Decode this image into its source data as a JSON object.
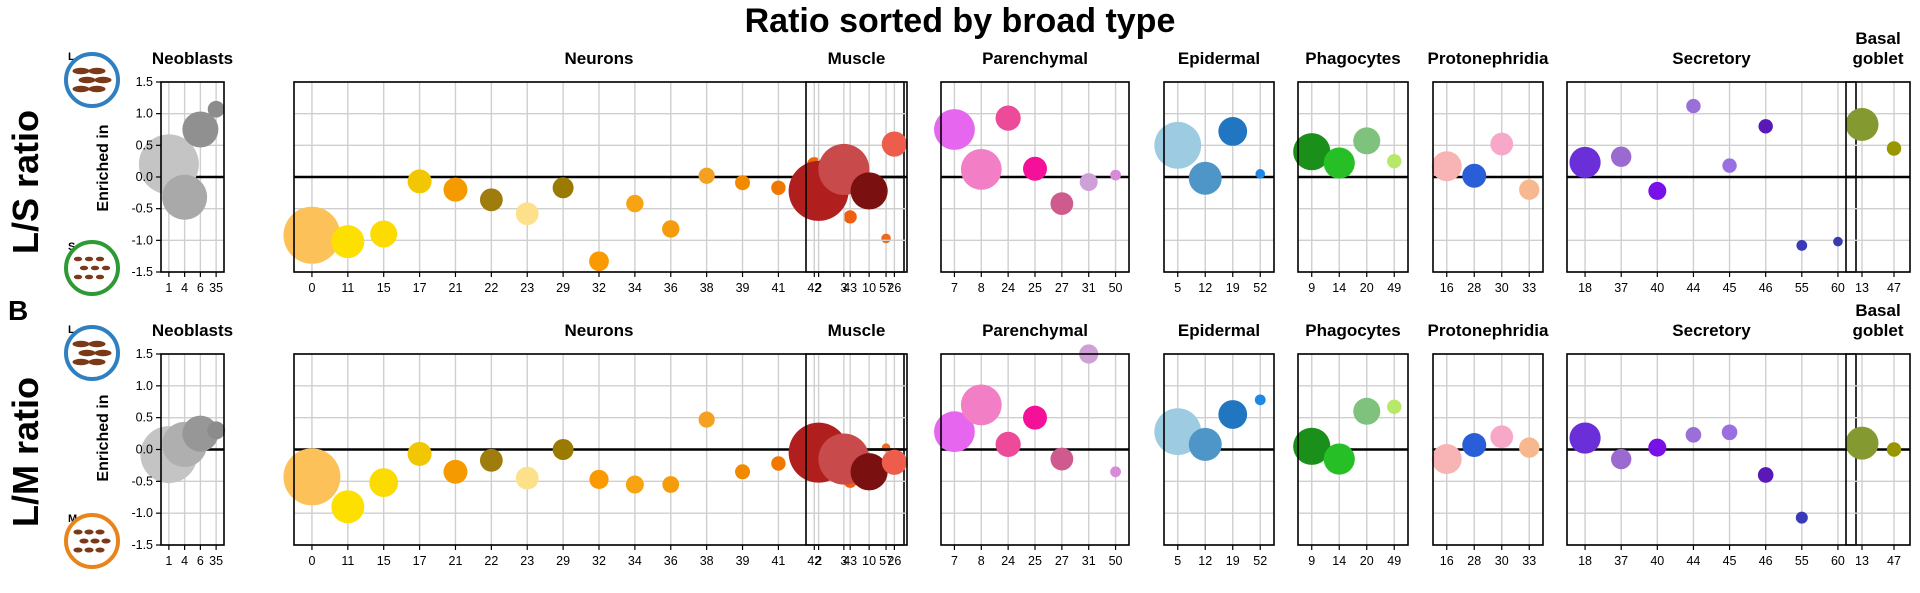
{
  "figure": {
    "title": "Ratio sorted by broad type",
    "panel_b_label": "B",
    "y_axis_title": "Enriched in",
    "rows": [
      {
        "key": "ls",
        "title": "L/S ratio",
        "top_letter": "L",
        "bottom_letter": "S",
        "top_icon": "large-worm-icon",
        "bottom_icon": "small-worm-icon"
      },
      {
        "key": "lm",
        "title": "L/M ratio",
        "top_letter": "L",
        "bottom_letter": "M",
        "top_icon": "large-worm-icon",
        "bottom_icon": "medium-worm-icon"
      }
    ],
    "icon_colors": {
      "L": "#2f7fc1",
      "S": "#2e9a33",
      "M": "#e8841c",
      "body": "#7a3a17",
      "fill": "#ffffff"
    }
  },
  "chart_data": [
    {
      "type": "scatter",
      "row": "L/S ratio",
      "ylim": [
        -1.5,
        1.5
      ],
      "yticks": [
        "-1.5",
        "-1.0",
        "-0.5",
        "0.0",
        "0.5",
        "1.0",
        "1.5"
      ],
      "grid": true,
      "panels": [
        {
          "title": "Neoblasts",
          "points": [
            {
              "x": "1",
              "y": 0.2,
              "size": 1.0,
              "color": "#c4c4c4"
            },
            {
              "x": "4",
              "y": -0.32,
              "size": 0.75,
              "color": "#a9a9a9"
            },
            {
              "x": "6",
              "y": 0.75,
              "size": 0.6,
              "color": "#909090"
            },
            {
              "x": "35",
              "y": 1.07,
              "size": 0.28,
              "color": "#8c8c8c"
            }
          ]
        },
        {
          "title": "Neurons",
          "points": [
            {
              "x": "0",
              "y": -0.92,
              "size": 0.95,
              "color": "#fdc15a"
            },
            {
              "x": "11",
              "y": -1.02,
              "size": 0.55,
              "color": "#fde000"
            },
            {
              "x": "15",
              "y": -0.9,
              "size": 0.45,
              "color": "#fcdb00"
            },
            {
              "x": "17",
              "y": -0.07,
              "size": 0.4,
              "color": "#f0c700"
            },
            {
              "x": "21",
              "y": -0.2,
              "size": 0.4,
              "color": "#f59a00"
            },
            {
              "x": "22",
              "y": -0.36,
              "size": 0.38,
              "color": "#9e7d0c"
            },
            {
              "x": "23",
              "y": -0.58,
              "size": 0.38,
              "color": "#fde08a"
            },
            {
              "x": "29",
              "y": -0.17,
              "size": 0.35,
              "color": "#9a7a00"
            },
            {
              "x": "32",
              "y": -1.33,
              "size": 0.33,
              "color": "#fa9a00"
            },
            {
              "x": "34",
              "y": -0.42,
              "size": 0.29,
              "color": "#f8a412"
            },
            {
              "x": "36",
              "y": -0.82,
              "size": 0.29,
              "color": "#f59c0a"
            },
            {
              "x": "38",
              "y": 0.02,
              "size": 0.27,
              "color": "#f4a020"
            },
            {
              "x": "39",
              "y": -0.09,
              "size": 0.25,
              "color": "#f28a00"
            },
            {
              "x": "41",
              "y": -0.17,
              "size": 0.24,
              "color": "#f07800"
            },
            {
              "x": "42",
              "y": 0.2,
              "size": 0.24,
              "color": "#ee6a00"
            },
            {
              "x": "43",
              "y": -0.63,
              "size": 0.22,
              "color": "#ee6010"
            },
            {
              "x": "57",
              "y": -0.97,
              "size": 0.16,
              "color": "#ee6a1f"
            }
          ]
        },
        {
          "title": "Muscle",
          "points": [
            {
              "x": "2",
              "y": -0.22,
              "size": 1.0,
              "color": "#b01e1e"
            },
            {
              "x": "3",
              "y": 0.12,
              "size": 0.85,
              "color": "#c94a4a"
            },
            {
              "x": "10",
              "y": -0.22,
              "size": 0.62,
              "color": "#7a1010"
            },
            {
              "x": "26",
              "y": 0.52,
              "size": 0.42,
              "color": "#ee5d4b"
            }
          ]
        },
        {
          "title": "Parenchymal",
          "points": [
            {
              "x": "7",
              "y": 0.75,
              "size": 0.68,
              "color": "#e666f0"
            },
            {
              "x": "8",
              "y": 0.12,
              "size": 0.68,
              "color": "#f27ec5"
            },
            {
              "x": "24",
              "y": 0.93,
              "size": 0.42,
              "color": "#ee4a9a"
            },
            {
              "x": "25",
              "y": 0.13,
              "size": 0.4,
              "color": "#f5109a"
            },
            {
              "x": "27",
              "y": -0.42,
              "size": 0.38,
              "color": "#cf5a8e"
            },
            {
              "x": "31",
              "y": -0.08,
              "size": 0.3,
              "color": "#cfa0d8"
            },
            {
              "x": "50",
              "y": 0.03,
              "size": 0.18,
              "color": "#d78ad8"
            }
          ]
        },
        {
          "title": "Epidermal",
          "points": [
            {
              "x": "5",
              "y": 0.5,
              "size": 0.78,
              "color": "#9dcbe2"
            },
            {
              "x": "12",
              "y": -0.02,
              "size": 0.55,
              "color": "#4f96c8"
            },
            {
              "x": "19",
              "y": 0.72,
              "size": 0.48,
              "color": "#2076c0"
            },
            {
              "x": "52",
              "y": 0.05,
              "size": 0.16,
              "color": "#1f88e5"
            }
          ]
        },
        {
          "title": "Phagocytes",
          "points": [
            {
              "x": "9",
              "y": 0.4,
              "size": 0.62,
              "color": "#1a8f1a"
            },
            {
              "x": "14",
              "y": 0.22,
              "size": 0.52,
              "color": "#26c026"
            },
            {
              "x": "20",
              "y": 0.57,
              "size": 0.45,
              "color": "#7ec27e"
            },
            {
              "x": "49",
              "y": 0.25,
              "size": 0.24,
              "color": "#b8e86a"
            }
          ]
        },
        {
          "title": "Protonephridia",
          "points": [
            {
              "x": "16",
              "y": 0.17,
              "size": 0.5,
              "color": "#f8b4b4"
            },
            {
              "x": "28",
              "y": 0.02,
              "size": 0.4,
              "color": "#2a5ed8"
            },
            {
              "x": "30",
              "y": 0.52,
              "size": 0.38,
              "color": "#f7a8c8"
            },
            {
              "x": "33",
              "y": -0.2,
              "size": 0.34,
              "color": "#f7b890"
            }
          ]
        },
        {
          "title": "Secretory",
          "points": [
            {
              "x": "18",
              "y": 0.23,
              "size": 0.52,
              "color": "#6a2fd8"
            },
            {
              "x": "37",
              "y": 0.32,
              "size": 0.34,
              "color": "#9a6ad0"
            },
            {
              "x": "40",
              "y": -0.22,
              "size": 0.3,
              "color": "#7a10e8"
            },
            {
              "x": "44",
              "y": 1.12,
              "size": 0.24,
              "color": "#9a70d8"
            },
            {
              "x": "45",
              "y": 0.18,
              "size": 0.24,
              "color": "#9a70e0"
            },
            {
              "x": "46",
              "y": 0.8,
              "size": 0.24,
              "color": "#5a18b8"
            },
            {
              "x": "55",
              "y": -1.08,
              "size": 0.18,
              "color": "#3a3ab8"
            },
            {
              "x": "60",
              "y": -1.02,
              "size": 0.16,
              "color": "#3a3ab0"
            }
          ]
        },
        {
          "title": "Basal goblet",
          "points": [
            {
              "x": "13",
              "y": 0.83,
              "size": 0.55,
              "color": "#849a30"
            },
            {
              "x": "47",
              "y": 0.45,
              "size": 0.24,
              "color": "#9a9600"
            }
          ]
        }
      ]
    },
    {
      "type": "scatter",
      "row": "L/M ratio",
      "ylim": [
        -1.5,
        1.5
      ],
      "yticks": [
        "-1.5",
        "-1.0",
        "-0.5",
        "0.0",
        "0.5",
        "1.0",
        "1.5"
      ],
      "grid": true,
      "panels": [
        {
          "title": "Neoblasts",
          "points": [
            {
              "x": "1",
              "y": -0.08,
              "size": 0.95,
              "color": "#c4c4c4"
            },
            {
              "x": "4",
              "y": 0.08,
              "size": 0.75,
              "color": "#afafaf"
            },
            {
              "x": "6",
              "y": 0.25,
              "size": 0.6,
              "color": "#979797"
            },
            {
              "x": "35",
              "y": 0.3,
              "size": 0.3,
              "color": "#8c8c8c"
            }
          ]
        },
        {
          "title": "Neurons",
          "points": [
            {
              "x": "0",
              "y": -0.43,
              "size": 0.95,
              "color": "#fdc15a"
            },
            {
              "x": "11",
              "y": -0.9,
              "size": 0.55,
              "color": "#fde000"
            },
            {
              "x": "15",
              "y": -0.52,
              "size": 0.48,
              "color": "#fcdb00"
            },
            {
              "x": "17",
              "y": -0.07,
              "size": 0.4,
              "color": "#f0c700"
            },
            {
              "x": "21",
              "y": -0.35,
              "size": 0.4,
              "color": "#f59a00"
            },
            {
              "x": "22",
              "y": -0.17,
              "size": 0.38,
              "color": "#9e7d0c"
            },
            {
              "x": "23",
              "y": -0.45,
              "size": 0.38,
              "color": "#fde08a"
            },
            {
              "x": "29",
              "y": 0.0,
              "size": 0.35,
              "color": "#9a7a00"
            },
            {
              "x": "32",
              "y": -0.47,
              "size": 0.32,
              "color": "#fa9a00"
            },
            {
              "x": "34",
              "y": -0.55,
              "size": 0.3,
              "color": "#f8a412"
            },
            {
              "x": "36",
              "y": -0.55,
              "size": 0.28,
              "color": "#f59c0a"
            },
            {
              "x": "38",
              "y": 0.47,
              "size": 0.27,
              "color": "#f4a020"
            },
            {
              "x": "39",
              "y": -0.35,
              "size": 0.25,
              "color": "#f28a00"
            },
            {
              "x": "41",
              "y": -0.22,
              "size": 0.24,
              "color": "#f07800"
            },
            {
              "x": "42",
              "y": -0.13,
              "size": 0.24,
              "color": "#ee6a00"
            },
            {
              "x": "43",
              "y": -0.5,
              "size": 0.22,
              "color": "#ee6010"
            },
            {
              "x": "57",
              "y": 0.03,
              "size": 0.14,
              "color": "#ee6a1f"
            }
          ]
        },
        {
          "title": "Muscle",
          "points": [
            {
              "x": "2",
              "y": -0.05,
              "size": 1.0,
              "color": "#b01e1e"
            },
            {
              "x": "3",
              "y": -0.15,
              "size": 0.85,
              "color": "#c94a4a"
            },
            {
              "x": "10",
              "y": -0.35,
              "size": 0.62,
              "color": "#7a1010"
            },
            {
              "x": "26",
              "y": -0.2,
              "size": 0.42,
              "color": "#ee5d4b"
            }
          ]
        },
        {
          "title": "Parenchymal",
          "points": [
            {
              "x": "7",
              "y": 0.28,
              "size": 0.68,
              "color": "#e666f0"
            },
            {
              "x": "8",
              "y": 0.7,
              "size": 0.68,
              "color": "#f27ec5"
            },
            {
              "x": "24",
              "y": 0.08,
              "size": 0.42,
              "color": "#ee4a9a"
            },
            {
              "x": "25",
              "y": 0.5,
              "size": 0.4,
              "color": "#f5109a"
            },
            {
              "x": "27",
              "y": -0.15,
              "size": 0.38,
              "color": "#cf5a8e"
            },
            {
              "x": "31",
              "y": 1.5,
              "size": 0.32,
              "color": "#cfa0d8"
            },
            {
              "x": "50",
              "y": -0.35,
              "size": 0.18,
              "color": "#d78ad8"
            }
          ]
        },
        {
          "title": "Epidermal",
          "points": [
            {
              "x": "5",
              "y": 0.28,
              "size": 0.78,
              "color": "#9dcbe2"
            },
            {
              "x": "12",
              "y": 0.08,
              "size": 0.55,
              "color": "#4f96c8"
            },
            {
              "x": "19",
              "y": 0.55,
              "size": 0.48,
              "color": "#2076c0"
            },
            {
              "x": "52",
              "y": 0.78,
              "size": 0.18,
              "color": "#1f88e5"
            }
          ]
        },
        {
          "title": "Phagocytes",
          "points": [
            {
              "x": "9",
              "y": 0.05,
              "size": 0.62,
              "color": "#1a8f1a"
            },
            {
              "x": "14",
              "y": -0.15,
              "size": 0.52,
              "color": "#26c026"
            },
            {
              "x": "20",
              "y": 0.6,
              "size": 0.45,
              "color": "#7ec27e"
            },
            {
              "x": "49",
              "y": 0.67,
              "size": 0.24,
              "color": "#b8e86a"
            }
          ]
        },
        {
          "title": "Protonephridia",
          "points": [
            {
              "x": "16",
              "y": -0.15,
              "size": 0.5,
              "color": "#f8b4b4"
            },
            {
              "x": "28",
              "y": 0.07,
              "size": 0.4,
              "color": "#2a5ed8"
            },
            {
              "x": "30",
              "y": 0.2,
              "size": 0.38,
              "color": "#f7a8c8"
            },
            {
              "x": "33",
              "y": 0.03,
              "size": 0.34,
              "color": "#f7b890"
            }
          ]
        },
        {
          "title": "Secretory",
          "points": [
            {
              "x": "18",
              "y": 0.18,
              "size": 0.52,
              "color": "#6a2fd8"
            },
            {
              "x": "37",
              "y": -0.15,
              "size": 0.34,
              "color": "#9a6ad0"
            },
            {
              "x": "40",
              "y": 0.03,
              "size": 0.3,
              "color": "#7a10e8"
            },
            {
              "x": "44",
              "y": 0.23,
              "size": 0.26,
              "color": "#9a70d8"
            },
            {
              "x": "45",
              "y": 0.27,
              "size": 0.26,
              "color": "#9a70e0"
            },
            {
              "x": "46",
              "y": -0.4,
              "size": 0.26,
              "color": "#5a18b8"
            },
            {
              "x": "55",
              "y": -1.07,
              "size": 0.2,
              "color": "#3a3ab8"
            },
            {
              "x": "60",
              "y": null,
              "size": 0,
              "color": "#3a3ab0"
            }
          ]
        },
        {
          "title": "Basal goblet",
          "points": [
            {
              "x": "13",
              "y": 0.1,
              "size": 0.55,
              "color": "#849a30"
            },
            {
              "x": "47",
              "y": 0.0,
              "size": 0.24,
              "color": "#9a9600"
            }
          ]
        }
      ]
    }
  ]
}
